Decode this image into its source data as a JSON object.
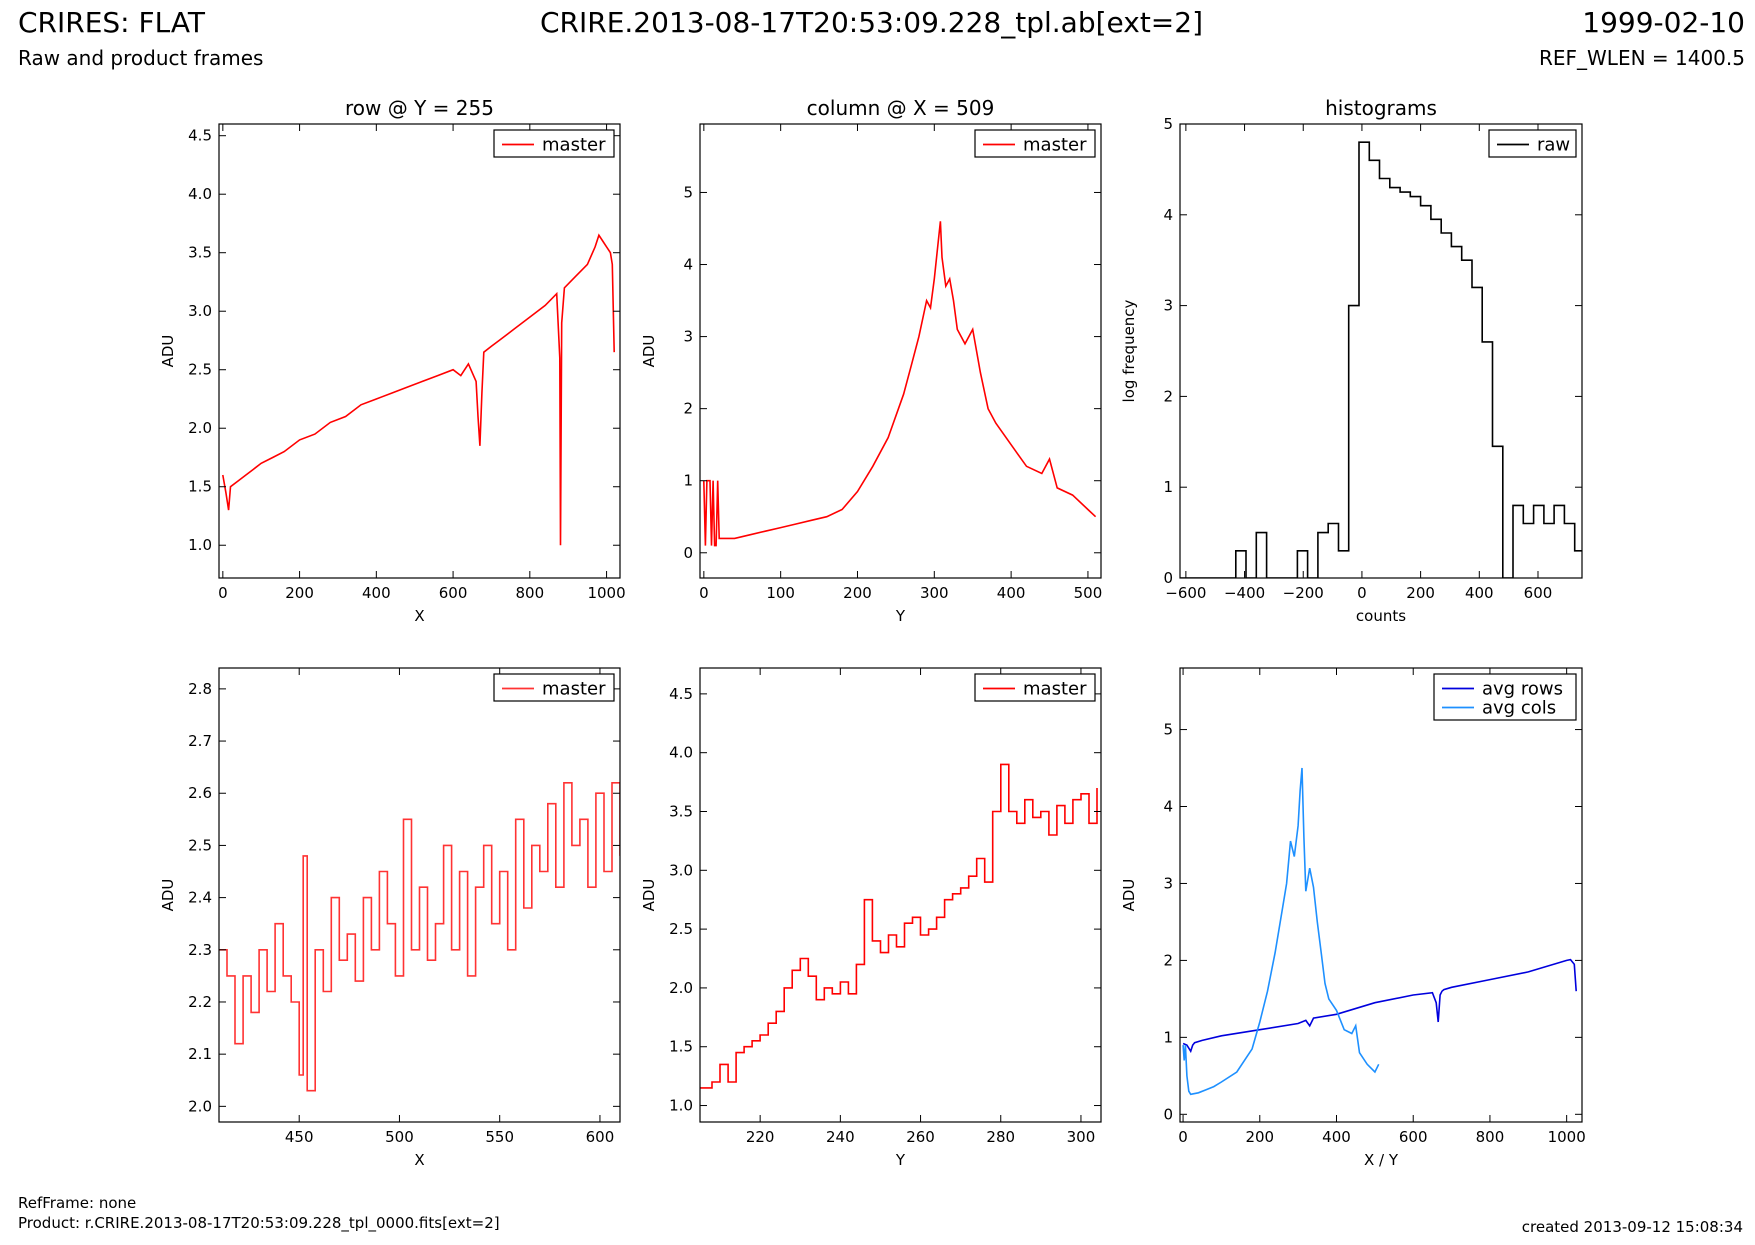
{
  "header": {
    "title_left": "CRIRES: FLAT",
    "subtitle_left": "Raw and product frames",
    "title_center": "CRIRE.2013-08-17T20:53:09.228_tpl.ab[ext=2]",
    "title_right": "1999-02-10",
    "subtitle_right": "REF_WLEN = 1400.5"
  },
  "footer": {
    "ref_frame": "RefFrame: none",
    "product": "Product: r.CRIRE.2013-08-17T20:53:09.228_tpl_0000.fits[ext=2]",
    "created": "created 2013-09-12 15:08:34"
  },
  "chart_data": [
    {
      "id": "row-full",
      "type": "line",
      "title": "row @ Y = 255",
      "xlabel": "X",
      "ylabel": "ADU",
      "xlim": [
        -10,
        1035
      ],
      "ylim": [
        0.72,
        4.6
      ],
      "xticks": [
        0,
        200,
        400,
        600,
        800,
        1000
      ],
      "yticks": [
        1.0,
        1.5,
        2.0,
        2.5,
        3.0,
        3.5,
        4.0,
        4.5
      ],
      "ytick_format": 1,
      "legend": "top-right",
      "series": [
        {
          "name": "master",
          "color": "#ff0000",
          "x": [
            0,
            8,
            15,
            20,
            40,
            60,
            80,
            100,
            130,
            160,
            200,
            240,
            280,
            320,
            360,
            400,
            440,
            480,
            520,
            560,
            600,
            620,
            640,
            660,
            665,
            670,
            675,
            680,
            700,
            720,
            760,
            800,
            840,
            870,
            878,
            880,
            883,
            890,
            920,
            950,
            970,
            980,
            990,
            1000,
            1010,
            1015,
            1020
          ],
          "y": [
            1.6,
            1.45,
            1.3,
            1.5,
            1.55,
            1.6,
            1.65,
            1.7,
            1.75,
            1.8,
            1.9,
            1.95,
            2.05,
            2.1,
            2.2,
            2.25,
            2.3,
            2.35,
            2.4,
            2.45,
            2.5,
            2.45,
            2.55,
            2.4,
            2.1,
            1.85,
            2.3,
            2.65,
            2.7,
            2.75,
            2.85,
            2.95,
            3.05,
            3.15,
            2.6,
            1.0,
            2.9,
            3.2,
            3.3,
            3.4,
            3.55,
            3.65,
            3.6,
            3.55,
            3.5,
            3.4,
            2.65
          ]
        }
      ]
    },
    {
      "id": "column-full",
      "type": "line",
      "title": "column @ X = 509",
      "xlabel": "Y",
      "ylabel": "ADU",
      "xlim": [
        -5,
        517
      ],
      "ylim": [
        -0.35,
        5.95
      ],
      "xticks": [
        0,
        100,
        200,
        300,
        400,
        500
      ],
      "yticks": [
        0,
        1,
        2,
        3,
        4,
        5
      ],
      "ytick_format": 0,
      "legend": "top-right",
      "series": [
        {
          "name": "master",
          "color": "#ff0000",
          "x": [
            0,
            2,
            4,
            6,
            8,
            10,
            12,
            14,
            16,
            18,
            20,
            40,
            60,
            80,
            100,
            120,
            140,
            160,
            180,
            200,
            220,
            240,
            260,
            270,
            280,
            290,
            295,
            300,
            305,
            308,
            310,
            315,
            320,
            325,
            330,
            340,
            350,
            360,
            370,
            380,
            400,
            420,
            440,
            450,
            460,
            480,
            500,
            510
          ],
          "y": [
            1.0,
            0.1,
            1.0,
            1.0,
            1.0,
            0.1,
            1.0,
            0.1,
            0.1,
            1.0,
            0.2,
            0.2,
            0.25,
            0.3,
            0.35,
            0.4,
            0.45,
            0.5,
            0.6,
            0.85,
            1.2,
            1.6,
            2.2,
            2.6,
            3.0,
            3.5,
            3.4,
            3.8,
            4.3,
            4.6,
            4.1,
            3.7,
            3.8,
            3.5,
            3.1,
            2.9,
            3.1,
            2.5,
            2.0,
            1.8,
            1.5,
            1.2,
            1.1,
            1.3,
            0.9,
            0.8,
            0.6,
            0.5
          ]
        }
      ]
    },
    {
      "id": "histogram",
      "type": "line",
      "title": "histograms",
      "xlabel": "counts",
      "ylabel": "log frequency",
      "xlim": [
        -620,
        750
      ],
      "ylim": [
        0,
        5
      ],
      "xticks": [
        -600,
        -400,
        -200,
        0,
        200,
        400,
        600
      ],
      "xtick_labels": [
        "−600",
        "−400",
        "−200",
        "0",
        "200",
        "400",
        "600"
      ],
      "yticks": [
        0,
        1,
        2,
        3,
        4,
        5
      ],
      "ytick_format": 0,
      "legend": "top-right",
      "series": [
        {
          "name": "raw",
          "color": "#000000",
          "step": true,
          "x": [
            -620,
            -430,
            -430,
            -395,
            -395,
            -360,
            -360,
            -325,
            -325,
            -290,
            -290,
            -220,
            -220,
            -185,
            -185,
            -150,
            -150,
            -115,
            -115,
            -80,
            -80,
            -45,
            -45,
            -10,
            -10,
            25,
            25,
            60,
            60,
            95,
            95,
            130,
            130,
            165,
            165,
            200,
            200,
            235,
            235,
            270,
            270,
            305,
            305,
            340,
            340,
            375,
            375,
            410,
            410,
            445,
            445,
            480,
            480,
            515,
            515,
            550,
            550,
            585,
            585,
            620,
            620,
            655,
            655,
            690,
            690,
            725,
            725,
            750
          ],
          "y": [
            0,
            0,
            0.3,
            0.3,
            0,
            0,
            0.5,
            0.5,
            0,
            0,
            0,
            0,
            0.3,
            0.3,
            0,
            0,
            0.5,
            0.5,
            0.6,
            0.6,
            0.3,
            0.3,
            3.0,
            3.0,
            4.8,
            4.8,
            4.6,
            4.6,
            4.4,
            4.4,
            4.3,
            4.3,
            4.25,
            4.25,
            4.2,
            4.2,
            4.1,
            4.1,
            3.95,
            3.95,
            3.8,
            3.8,
            3.65,
            3.65,
            3.5,
            3.5,
            3.2,
            3.2,
            2.6,
            2.6,
            1.45,
            1.45,
            0,
            0,
            0.8,
            0.8,
            0.6,
            0.6,
            0.8,
            0.8,
            0.6,
            0.6,
            0.8,
            0.8,
            0.6,
            0.6,
            0.3,
            0.3
          ]
        }
      ]
    },
    {
      "id": "row-zoom",
      "type": "line",
      "title": "",
      "xlabel": "X",
      "ylabel": "ADU",
      "xlim": [
        410,
        610
      ],
      "ylim": [
        1.97,
        2.84
      ],
      "xticks": [
        450,
        500,
        550,
        600
      ],
      "yticks": [
        2.0,
        2.1,
        2.2,
        2.3,
        2.4,
        2.5,
        2.6,
        2.7,
        2.8
      ],
      "ytick_format": 1,
      "legend": "top-right",
      "series": [
        {
          "name": "master",
          "color": "#ff3333",
          "step": true,
          "x": [
            410,
            414,
            418,
            422,
            426,
            430,
            434,
            438,
            442,
            446,
            450,
            452,
            454,
            458,
            462,
            466,
            470,
            474,
            478,
            482,
            486,
            490,
            494,
            498,
            502,
            506,
            510,
            514,
            518,
            522,
            526,
            530,
            534,
            538,
            542,
            546,
            550,
            554,
            558,
            562,
            566,
            570,
            574,
            578,
            582,
            586,
            590,
            594,
            598,
            602,
            606,
            610
          ],
          "y": [
            2.3,
            2.25,
            2.12,
            2.25,
            2.18,
            2.3,
            2.22,
            2.35,
            2.25,
            2.2,
            2.06,
            2.48,
            2.03,
            2.3,
            2.22,
            2.4,
            2.28,
            2.33,
            2.24,
            2.4,
            2.3,
            2.45,
            2.35,
            2.25,
            2.55,
            2.3,
            2.42,
            2.28,
            2.35,
            2.5,
            2.3,
            2.45,
            2.25,
            2.42,
            2.5,
            2.35,
            2.45,
            2.3,
            2.55,
            2.38,
            2.5,
            2.45,
            2.58,
            2.42,
            2.62,
            2.5,
            2.55,
            2.42,
            2.6,
            2.45,
            2.62,
            2.48
          ]
        }
      ]
    },
    {
      "id": "column-zoom",
      "type": "line",
      "title": "",
      "xlabel": "Y",
      "ylabel": "ADU",
      "xlim": [
        205,
        305
      ],
      "ylim": [
        0.86,
        4.72
      ],
      "xticks": [
        220,
        240,
        260,
        280,
        300
      ],
      "yticks": [
        1.0,
        1.5,
        2.0,
        2.5,
        3.0,
        3.5,
        4.0,
        4.5
      ],
      "ytick_format": 1,
      "legend": "top-right",
      "series": [
        {
          "name": "master",
          "color": "#ff0000",
          "step": true,
          "x": [
            205,
            208,
            210,
            212,
            214,
            216,
            218,
            220,
            222,
            224,
            226,
            228,
            230,
            232,
            234,
            236,
            238,
            240,
            242,
            244,
            246,
            248,
            250,
            252,
            254,
            256,
            258,
            260,
            262,
            264,
            266,
            268,
            270,
            272,
            274,
            276,
            278,
            280,
            282,
            284,
            286,
            288,
            290,
            292,
            294,
            296,
            298,
            300,
            302,
            304
          ],
          "y": [
            1.15,
            1.2,
            1.35,
            1.2,
            1.45,
            1.5,
            1.55,
            1.6,
            1.7,
            1.8,
            2.0,
            2.15,
            2.25,
            2.1,
            1.9,
            2.0,
            1.95,
            2.05,
            1.95,
            2.2,
            2.75,
            2.4,
            2.3,
            2.45,
            2.35,
            2.55,
            2.6,
            2.45,
            2.5,
            2.6,
            2.75,
            2.8,
            2.85,
            2.95,
            3.1,
            2.9,
            3.5,
            3.9,
            3.5,
            3.4,
            3.6,
            3.45,
            3.5,
            3.3,
            3.55,
            3.4,
            3.6,
            3.65,
            3.4,
            3.7
          ]
        }
      ]
    },
    {
      "id": "averages",
      "type": "line",
      "title": "",
      "xlabel": "X / Y",
      "ylabel": "ADU",
      "xlim": [
        -8,
        1040
      ],
      "ylim": [
        -0.1,
        5.8
      ],
      "xticks": [
        0,
        200,
        400,
        600,
        800,
        1000
      ],
      "yticks": [
        0,
        1,
        2,
        3,
        4,
        5
      ],
      "ytick_format": 0,
      "legend": "top-right",
      "series": [
        {
          "name": "avg rows",
          "color": "#0000dd",
          "x": [
            0,
            10,
            20,
            25,
            30,
            50,
            100,
            200,
            300,
            320,
            330,
            340,
            400,
            500,
            600,
            650,
            660,
            665,
            670,
            675,
            680,
            700,
            800,
            900,
            1000,
            1010,
            1020,
            1025
          ],
          "y": [
            0.92,
            0.9,
            0.82,
            0.9,
            0.93,
            0.96,
            1.02,
            1.1,
            1.18,
            1.22,
            1.15,
            1.25,
            1.3,
            1.45,
            1.55,
            1.58,
            1.45,
            1.2,
            1.55,
            1.6,
            1.62,
            1.65,
            1.75,
            1.85,
            2.0,
            2.01,
            1.95,
            1.6
          ]
        },
        {
          "name": "avg cols",
          "color": "#1e90ff",
          "x": [
            0,
            3,
            6,
            10,
            15,
            20,
            40,
            60,
            80,
            100,
            140,
            180,
            200,
            220,
            240,
            260,
            270,
            280,
            290,
            300,
            305,
            310,
            315,
            320,
            330,
            340,
            350,
            360,
            370,
            380,
            400,
            420,
            440,
            450,
            460,
            480,
            500,
            510
          ],
          "y": [
            0.9,
            0.7,
            0.9,
            0.5,
            0.3,
            0.26,
            0.28,
            0.32,
            0.36,
            0.42,
            0.55,
            0.85,
            1.2,
            1.6,
            2.1,
            2.7,
            3.0,
            3.55,
            3.35,
            3.75,
            4.2,
            4.5,
            3.6,
            2.9,
            3.2,
            2.95,
            2.5,
            2.1,
            1.7,
            1.5,
            1.35,
            1.1,
            1.05,
            1.15,
            0.8,
            0.65,
            0.55,
            0.65
          ]
        }
      ]
    }
  ]
}
